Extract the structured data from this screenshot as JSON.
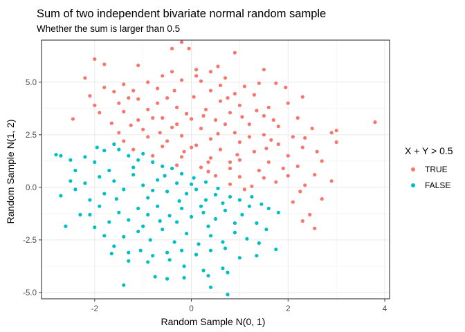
{
  "chart_data": {
    "type": "scatter",
    "title": "Sum of two independent bivariate normal random sample",
    "subtitle": "Whether the sum is larger than 0.5",
    "xlabel": "Random Sample N(0, 1)",
    "ylabel": "Random Sample N(1, 2)",
    "xlim": [
      -3.1,
      4.1
    ],
    "ylim": [
      -5.3,
      7.0
    ],
    "x_ticks": [
      -2,
      0,
      2,
      4
    ],
    "x_tick_labels": [
      "-2",
      "0",
      "2",
      "4"
    ],
    "y_ticks": [
      -5.0,
      -2.5,
      0.0,
      2.5,
      5.0
    ],
    "y_tick_labels": [
      "-5.0",
      "-2.5",
      "0.0",
      "2.5",
      "5.0"
    ],
    "grid": true,
    "legend": {
      "title": "X + Y > 0.5",
      "position": "right"
    },
    "series": [
      {
        "name": "TRUE",
        "color": "#F8766D",
        "points": [
          [
            -0.4,
            6.6
          ],
          [
            -0.05,
            6.6
          ],
          [
            -0.2,
            6.9
          ],
          [
            0.9,
            6.4
          ],
          [
            -2.0,
            6.1
          ],
          [
            -1.8,
            5.85
          ],
          [
            -2.2,
            5.2
          ],
          [
            -1.1,
            5.8
          ],
          [
            0.55,
            5.75
          ],
          [
            1.5,
            5.6
          ],
          [
            -0.4,
            5.5
          ],
          [
            0.1,
            5.6
          ],
          [
            0.4,
            5.5
          ],
          [
            0.7,
            5.2
          ],
          [
            -0.6,
            5.3
          ],
          [
            1.95,
            4.75
          ],
          [
            1.4,
            4.95
          ],
          [
            1.75,
            4.95
          ],
          [
            -1.8,
            4.75
          ],
          [
            -1.4,
            4.9
          ],
          [
            -0.9,
            5.0
          ],
          [
            -0.2,
            5.1
          ],
          [
            0.2,
            5.05
          ],
          [
            1.1,
            4.8
          ],
          [
            -2.1,
            4.35
          ],
          [
            -1.6,
            4.55
          ],
          [
            -1.2,
            4.6
          ],
          [
            -0.7,
            4.7
          ],
          [
            0.4,
            4.6
          ],
          [
            0.9,
            4.45
          ],
          [
            1.3,
            4.4
          ],
          [
            2.3,
            4.3
          ],
          [
            -2.0,
            3.9
          ],
          [
            -1.5,
            4.0
          ],
          [
            -1.1,
            4.2
          ],
          [
            -0.5,
            4.25
          ],
          [
            0.05,
            4.3
          ],
          [
            0.6,
            4.1
          ],
          [
            1.0,
            3.9
          ],
          [
            1.6,
            3.8
          ],
          [
            2.0,
            4.0
          ],
          [
            -2.45,
            3.25
          ],
          [
            -1.9,
            3.55
          ],
          [
            -1.4,
            3.6
          ],
          [
            -0.9,
            3.7
          ],
          [
            -0.3,
            3.8
          ],
          [
            0.3,
            3.7
          ],
          [
            0.8,
            3.55
          ],
          [
            1.5,
            3.4
          ],
          [
            2.2,
            3.3
          ],
          [
            -1.65,
            3.05
          ],
          [
            -1.1,
            3.2
          ],
          [
            -0.6,
            3.3
          ],
          [
            0.0,
            3.25
          ],
          [
            0.5,
            3.2
          ],
          [
            1.2,
            3.0
          ],
          [
            1.8,
            2.9
          ],
          [
            2.5,
            2.8
          ],
          [
            3.0,
            2.7
          ],
          [
            3.8,
            3.1
          ],
          [
            -1.5,
            2.6
          ],
          [
            -1.0,
            2.75
          ],
          [
            -0.4,
            2.85
          ],
          [
            0.2,
            2.8
          ],
          [
            0.9,
            2.6
          ],
          [
            1.5,
            2.5
          ],
          [
            2.1,
            2.4
          ],
          [
            2.9,
            2.6
          ],
          [
            -1.4,
            2.2
          ],
          [
            -0.9,
            2.4
          ],
          [
            -0.2,
            2.45
          ],
          [
            0.4,
            2.3
          ],
          [
            1.0,
            2.15
          ],
          [
            1.8,
            2.05
          ],
          [
            3.0,
            2.15
          ],
          [
            2.35,
            2.35
          ],
          [
            -1.2,
            1.8
          ],
          [
            -0.6,
            1.95
          ],
          [
            0.0,
            1.9
          ],
          [
            0.6,
            1.8
          ],
          [
            1.3,
            1.7
          ],
          [
            2.0,
            1.5
          ],
          [
            2.3,
            1.9
          ],
          [
            -0.8,
            1.5
          ],
          [
            -0.2,
            1.45
          ],
          [
            0.4,
            1.4
          ],
          [
            1.0,
            1.3
          ],
          [
            1.6,
            1.2
          ],
          [
            2.2,
            1.0
          ],
          [
            2.55,
            0.6
          ],
          [
            -0.3,
            1.05
          ],
          [
            0.2,
            0.95
          ],
          [
            0.8,
            0.9
          ],
          [
            1.4,
            0.8
          ],
          [
            2.0,
            0.55
          ],
          [
            2.35,
            0.1
          ],
          [
            0.5,
            0.55
          ],
          [
            1.0,
            0.5
          ],
          [
            1.5,
            0.45
          ],
          [
            0.8,
            0.15
          ],
          [
            1.25,
            0.05
          ],
          [
            1.75,
            0.25
          ],
          [
            2.9,
            0.3
          ],
          [
            2.1,
            -0.7
          ],
          [
            2.7,
            -0.55
          ],
          [
            2.45,
            -1.3
          ],
          [
            2.3,
            -1.6
          ],
          [
            2.55,
            -1.95
          ],
          [
            2.25,
            -0.2
          ],
          [
            1.1,
            -0.1
          ],
          [
            -0.7,
            4.0
          ],
          [
            -0.1,
            3.5
          ],
          [
            0.7,
            3.0
          ],
          [
            -0.5,
            2.2
          ],
          [
            0.1,
            2.0
          ],
          [
            0.8,
            1.2
          ],
          [
            1.2,
            2.4
          ],
          [
            -0.3,
            3.0
          ],
          [
            0.25,
            3.4
          ],
          [
            1.35,
            3.65
          ],
          [
            -1.3,
            4.25
          ],
          [
            0.6,
            4.85
          ],
          [
            -0.8,
            3.3
          ],
          [
            1.65,
            2.25
          ],
          [
            2.6,
            1.7
          ],
          [
            0.35,
            1.2
          ],
          [
            1.9,
            0.9
          ],
          [
            0.1,
            5.3
          ],
          [
            -0.35,
            4.6
          ],
          [
            0.55,
            2.55
          ],
          [
            1.05,
            3.35
          ],
          [
            -1.25,
            2.95
          ],
          [
            -0.15,
            1.7
          ],
          [
            0.95,
            1.55
          ],
          [
            1.7,
            3.2
          ],
          [
            2.7,
            1.25
          ],
          [
            -0.65,
            2.6
          ],
          [
            0.35,
            0.75
          ],
          [
            1.55,
            1.85
          ],
          [
            0.75,
            4.25
          ]
        ]
      },
      {
        "name": "FALSE",
        "color": "#00BFC4",
        "points": [
          [
            -2.8,
            1.55
          ],
          [
            -2.7,
            1.5
          ],
          [
            -2.5,
            1.3
          ],
          [
            -2.4,
            0.8
          ],
          [
            -2.2,
            1.45
          ],
          [
            -2.0,
            1.2
          ],
          [
            -1.95,
            1.9
          ],
          [
            -1.8,
            1.75
          ],
          [
            -1.6,
            2.05
          ],
          [
            -1.5,
            1.8
          ],
          [
            -1.3,
            1.5
          ],
          [
            -1.1,
            1.3
          ],
          [
            -1.0,
            1.6
          ],
          [
            -0.8,
            1.2
          ],
          [
            -0.6,
            1.0
          ],
          [
            -0.4,
            0.9
          ],
          [
            -0.2,
            0.65
          ],
          [
            0.05,
            0.45
          ],
          [
            0.3,
            0.25
          ],
          [
            0.55,
            -0.05
          ],
          [
            -2.7,
            -0.4
          ],
          [
            -2.4,
            -0.1
          ],
          [
            -2.6,
            -1.85
          ],
          [
            -2.3,
            -1.3
          ],
          [
            -2.1,
            -0.6
          ],
          [
            -1.9,
            -0.9
          ],
          [
            -1.8,
            -0.3
          ],
          [
            -1.6,
            0.3
          ],
          [
            -1.4,
            -0.1
          ],
          [
            -1.2,
            0.6
          ],
          [
            -1.0,
            0.1
          ],
          [
            -0.9,
            -0.5
          ],
          [
            -0.7,
            0.35
          ],
          [
            -0.5,
            -0.2
          ],
          [
            -0.3,
            0.2
          ],
          [
            -0.1,
            -0.3
          ],
          [
            0.1,
            -0.1
          ],
          [
            0.3,
            -0.6
          ],
          [
            0.5,
            -0.35
          ],
          [
            0.8,
            -0.45
          ],
          [
            1.0,
            -0.6
          ],
          [
            1.2,
            -0.9
          ],
          [
            1.45,
            -0.8
          ],
          [
            1.6,
            -1.0
          ],
          [
            1.8,
            -1.2
          ],
          [
            1.35,
            -1.7
          ],
          [
            1.05,
            -1.3
          ],
          [
            0.7,
            -1.1
          ],
          [
            0.5,
            -1.5
          ],
          [
            0.25,
            -1.2
          ],
          [
            0.0,
            -1.4
          ],
          [
            -0.2,
            -1.0
          ],
          [
            -0.45,
            -1.35
          ],
          [
            -0.7,
            -0.9
          ],
          [
            -0.9,
            -1.3
          ],
          [
            -1.1,
            -1.0
          ],
          [
            -1.3,
            -1.55
          ],
          [
            -1.5,
            -1.2
          ],
          [
            -1.7,
            -1.65
          ],
          [
            -2.0,
            -1.9
          ],
          [
            -1.8,
            -2.3
          ],
          [
            -1.4,
            -2.35
          ],
          [
            -1.1,
            -2.1
          ],
          [
            -0.85,
            -2.5
          ],
          [
            -0.6,
            -2.0
          ],
          [
            -0.35,
            -2.6
          ],
          [
            -0.1,
            -2.2
          ],
          [
            0.15,
            -2.7
          ],
          [
            0.4,
            -2.3
          ],
          [
            0.65,
            -2.6
          ],
          [
            0.9,
            -2.15
          ],
          [
            1.15,
            -2.45
          ],
          [
            1.4,
            -2.65
          ],
          [
            1.75,
            -2.95
          ],
          [
            1.35,
            -3.25
          ],
          [
            1.0,
            -3.35
          ],
          [
            0.7,
            -2.9
          ],
          [
            0.4,
            -3.0
          ],
          [
            0.1,
            -3.2
          ],
          [
            -0.2,
            -3.0
          ],
          [
            -0.5,
            -3.1
          ],
          [
            -0.8,
            -3.25
          ],
          [
            -1.05,
            -3.0
          ],
          [
            -1.3,
            -3.1
          ],
          [
            -1.65,
            -3.15
          ],
          [
            -1.3,
            -3.5
          ],
          [
            -0.9,
            -3.55
          ],
          [
            -0.45,
            -3.45
          ],
          [
            -0.15,
            -3.75
          ],
          [
            0.25,
            -3.95
          ],
          [
            0.65,
            -3.85
          ],
          [
            0.75,
            -4.05
          ],
          [
            0.35,
            -4.2
          ],
          [
            -0.15,
            -4.3
          ],
          [
            -0.5,
            -4.35
          ],
          [
            -0.75,
            -4.25
          ],
          [
            -1.4,
            -4.65
          ],
          [
            0.4,
            -4.75
          ],
          [
            0.75,
            -5.1
          ],
          [
            -1.6,
            -2.8
          ],
          [
            -2.2,
            0.2
          ],
          [
            -2.5,
            0.3
          ],
          [
            -1.7,
            0.8
          ],
          [
            -1.2,
            0.95
          ],
          [
            -0.55,
            0.55
          ],
          [
            -0.25,
            -0.65
          ],
          [
            0.2,
            -0.9
          ],
          [
            -1.0,
            -1.85
          ],
          [
            -0.3,
            -1.65
          ],
          [
            0.9,
            -1.7
          ],
          [
            -2.1,
            -1.3
          ],
          [
            -1.55,
            -0.55
          ],
          [
            -0.8,
            -0.15
          ],
          [
            0.0,
            0.15
          ],
          [
            0.65,
            -0.75
          ],
          [
            1.25,
            -0.45
          ],
          [
            -1.9,
            0.5
          ],
          [
            -0.65,
            -1.6
          ],
          [
            0.35,
            -1.85
          ],
          [
            1.55,
            -2.0
          ]
        ]
      }
    ]
  }
}
